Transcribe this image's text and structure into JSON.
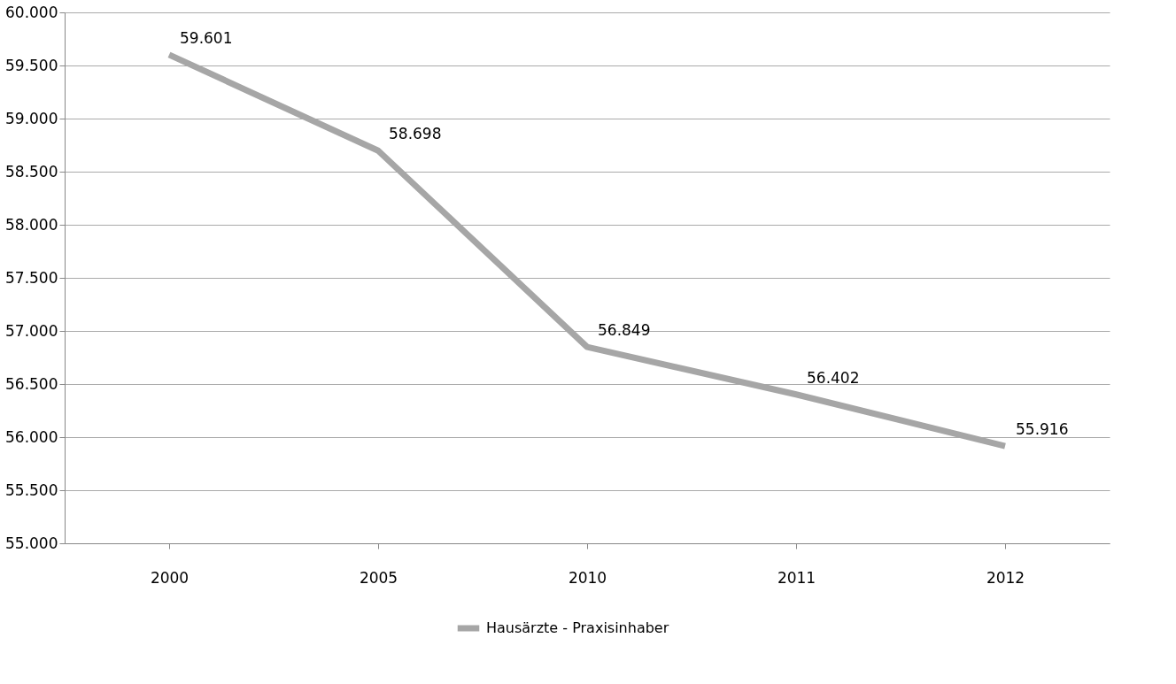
{
  "chart_data": {
    "type": "line",
    "categories": [
      "2000",
      "2005",
      "2010",
      "2011",
      "2012"
    ],
    "series": [
      {
        "name": "Hausärzte - Praxisinhaber",
        "color": "#a6a6a6",
        "values": [
          59601,
          58698,
          56849,
          56402,
          55916
        ],
        "value_labels": [
          "59.601",
          "58.698",
          "56.849",
          "56.402",
          "55.916"
        ]
      }
    ],
    "ylim": [
      55000,
      60000
    ],
    "yticks": [
      {
        "value": 55000,
        "label": "55.000"
      },
      {
        "value": 55500,
        "label": "55.500"
      },
      {
        "value": 56000,
        "label": "56.000"
      },
      {
        "value": 56500,
        "label": "56.500"
      },
      {
        "value": 57000,
        "label": "57.000"
      },
      {
        "value": 57500,
        "label": "57.500"
      },
      {
        "value": 58000,
        "label": "58.000"
      },
      {
        "value": 58500,
        "label": "58.500"
      },
      {
        "value": 59000,
        "label": "59.000"
      },
      {
        "value": 59500,
        "label": "59.500"
      },
      {
        "value": 60000,
        "label": "60.000"
      }
    ],
    "grid": "y",
    "legend": "bottom",
    "marker": "none",
    "line_style": "solid"
  }
}
